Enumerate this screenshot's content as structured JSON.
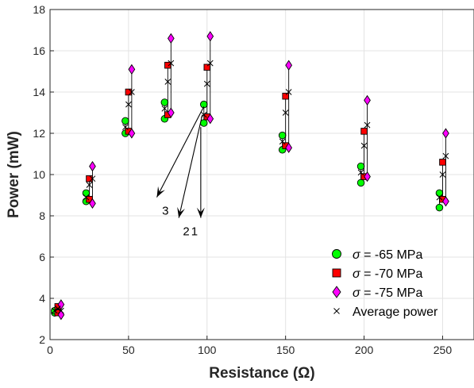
{
  "chart_data": {
    "type": "scatter",
    "xlabel": "Resistance (Ω)",
    "ylabel": "Power (mW)",
    "xlim": [
      0,
      270
    ],
    "ylim": [
      2,
      18
    ],
    "xticks": [
      "0",
      "50",
      "100",
      "150",
      "200",
      "250"
    ],
    "yticks": [
      "2",
      "4",
      "6",
      "8",
      "10",
      "12",
      "14",
      "16",
      "18"
    ],
    "grid": true,
    "legend_position": "bottom-right",
    "groups": [
      {
        "x": 5,
        "g65": [
          3.3,
          3.4
        ],
        "g70": [
          3.3,
          3.6
        ],
        "g75": [
          3.2,
          3.7
        ],
        "avg": [
          3.4,
          3.5,
          3.4
        ]
      },
      {
        "x": 25,
        "g65": [
          8.7,
          9.1
        ],
        "g70": [
          8.8,
          9.8
        ],
        "g75": [
          8.6,
          10.4
        ],
        "avg": [
          8.9,
          9.5,
          9.8
        ]
      },
      {
        "x": 50,
        "g65": [
          12.0,
          12.6
        ],
        "g70": [
          12.1,
          14.0
        ],
        "g75": [
          12.0,
          15.1
        ],
        "avg": [
          12.3,
          13.4,
          14.0
        ]
      },
      {
        "x": 75,
        "g65": [
          12.7,
          13.5
        ],
        "g70": [
          12.9,
          15.3
        ],
        "g75": [
          13.0,
          16.6
        ],
        "avg": [
          13.2,
          14.5,
          15.4
        ]
      },
      {
        "x": 100,
        "g65": [
          12.5,
          13.4
        ],
        "g70": [
          12.8,
          15.2
        ],
        "g75": [
          12.7,
          16.7
        ],
        "avg": [
          12.9,
          14.4,
          15.4
        ]
      },
      {
        "x": 150,
        "g65": [
          11.2,
          11.9
        ],
        "g70": [
          11.4,
          13.8
        ],
        "g75": [
          11.3,
          15.3
        ],
        "avg": [
          11.6,
          13.0,
          14.0
        ]
      },
      {
        "x": 200,
        "g65": [
          9.6,
          10.4
        ],
        "g70": [
          9.9,
          12.1
        ],
        "g75": [
          9.9,
          13.6
        ],
        "avg": [
          10.1,
          11.4,
          12.4
        ]
      },
      {
        "x": 250,
        "g65": [
          8.4,
          9.1
        ],
        "g70": [
          8.8,
          10.6
        ],
        "g75": [
          8.7,
          12.0
        ],
        "avg": [
          8.9,
          10.0,
          10.9
        ]
      }
    ],
    "annotations": [
      {
        "label": "1",
        "tail": [
          96,
          12.3
        ],
        "head": [
          96,
          7.9
        ]
      },
      {
        "label": "2",
        "tail": [
          97,
          12.9
        ],
        "head": [
          82,
          7.9
        ]
      },
      {
        "label": "3",
        "tail": [
          98,
          13.3
        ],
        "head": [
          68,
          8.9
        ]
      }
    ],
    "legend": [
      {
        "key": "g65",
        "symbol": "σ",
        "label": " = -65 MPa",
        "marker": "circle",
        "color": "#00ff00"
      },
      {
        "key": "g70",
        "symbol": "σ",
        "label": " = -70 MPa",
        "marker": "square",
        "color": "#ff0000"
      },
      {
        "key": "g75",
        "symbol": "σ",
        "label": " = -75 MPa",
        "marker": "diamond",
        "color": "#ff00ff"
      },
      {
        "key": "avg",
        "symbol": "",
        "label": "Average power",
        "marker": "x",
        "color": "#000000"
      }
    ]
  }
}
